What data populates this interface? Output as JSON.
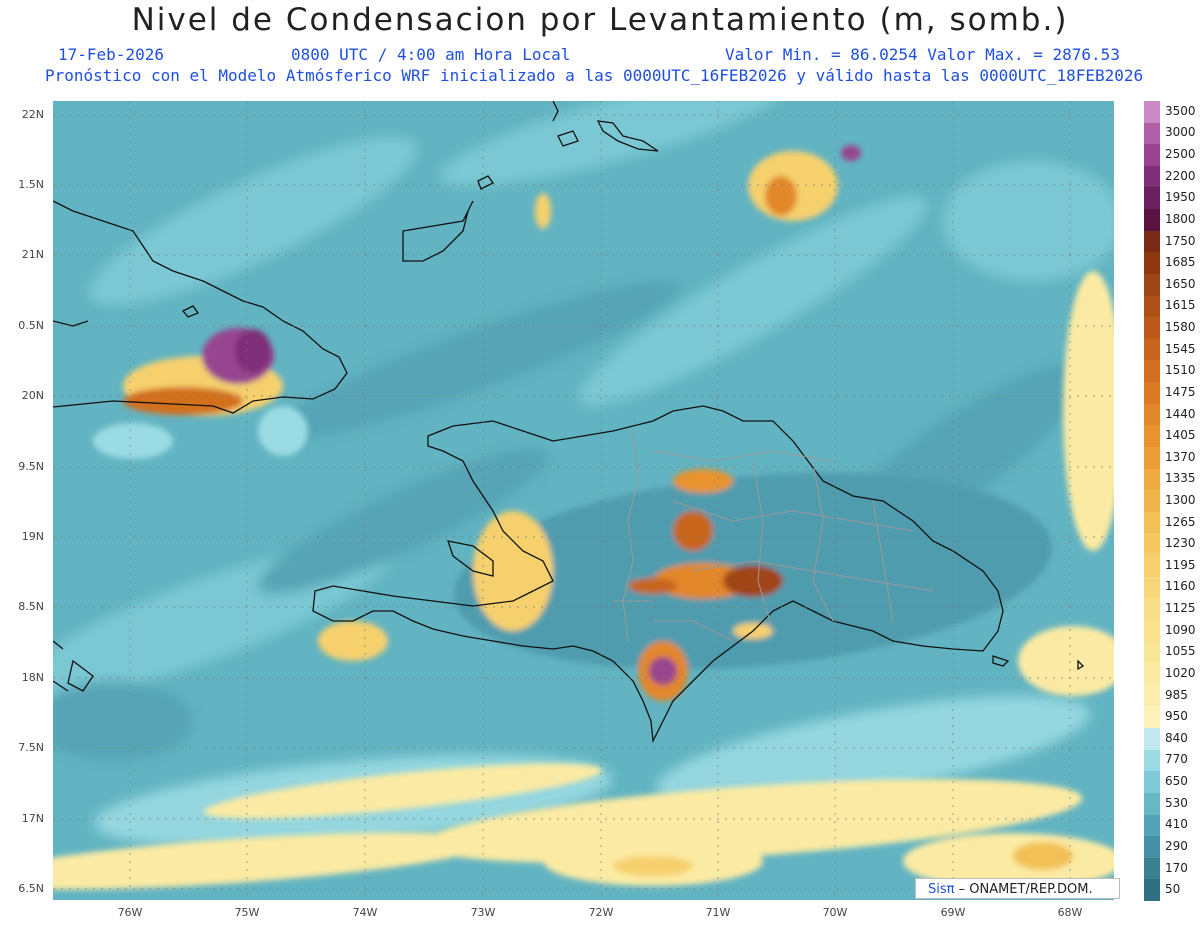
{
  "header": {
    "title": "Nivel de Condensacion por Levantamiento (m, somb.)",
    "date": "17-Feb-2026",
    "time": "0800 UTC / 4:00 am Hora Local",
    "min_max": "Valor Min. = 86.0254  Valor Max. = 2876.53",
    "model_info": "Pronóstico con el Modelo Atmósferico WRF inicializado a las 0000UTC_16FEB2026 y válido hasta las  0000UTC_18FEB2026"
  },
  "map": {
    "lat_ticks": [
      "22N",
      "1.5N",
      "21N",
      "0.5N",
      "20N",
      "9.5N",
      "19N",
      "8.5N",
      "18N",
      "7.5N",
      "17N",
      "6.5N"
    ],
    "lon_ticks": [
      "76W",
      "75W",
      "74W",
      "73W",
      "72W",
      "71W",
      "70W",
      "69W",
      "68W"
    ]
  },
  "colorbar": {
    "levels": [
      "3500",
      "3000",
      "2500",
      "2200",
      "1950",
      "1800",
      "1750",
      "1685",
      "1650",
      "1615",
      "1580",
      "1545",
      "1510",
      "1475",
      "1440",
      "1405",
      "1370",
      "1335",
      "1300",
      "1265",
      "1230",
      "1195",
      "1160",
      "1125",
      "1090",
      "1055",
      "1020",
      "985",
      "950",
      "840",
      "770",
      "650",
      "530",
      "410",
      "290",
      "170",
      "50"
    ],
    "colors": [
      "#c98ac4",
      "#b060a8",
      "#98448f",
      "#7f2f78",
      "#6a2160",
      "#5a1240",
      "#7a2b14",
      "#8e3812",
      "#a04515",
      "#b04f18",
      "#bc5a1a",
      "#c8651c",
      "#d2701f",
      "#db7b24",
      "#e2872a",
      "#e8932f",
      "#ec9f36",
      "#efab40",
      "#f1b64b",
      "#f3c056",
      "#f5c862",
      "#f6d06d",
      "#f7d778",
      "#f8dd84",
      "#f9e28e",
      "#fae698",
      "#fbeaa3",
      "#fbeead",
      "#fcf1b8",
      "#bfe9ee",
      "#9bdbe3",
      "#7fcad6",
      "#68b7c6",
      "#55a3b4",
      "#4590a2",
      "#3a7f92",
      "#2f6f82"
    ]
  },
  "credit": {
    "logo": "Sisπ",
    "text": "– ONAMET/REP.DOM."
  }
}
